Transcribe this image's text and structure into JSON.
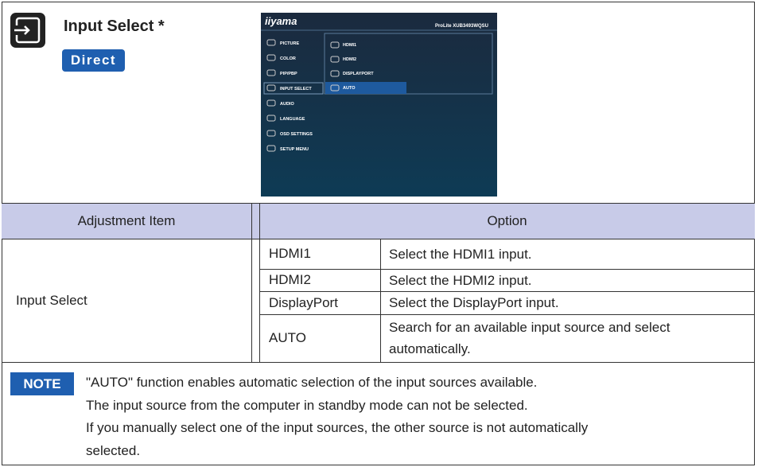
{
  "header": {
    "title": "Input Select *",
    "badge": "Direct"
  },
  "osd": {
    "brand": "iiyama",
    "model": "ProLite XUB3493WQSU",
    "menu": [
      "PICTURE",
      "COLOR",
      "PIP/PBP",
      "INPUT SELECT",
      "AUDIO",
      "LANGUAGE",
      "OSD SETTINGS",
      "SETUP MENU"
    ],
    "submenu": [
      "HDMI1",
      "HDMI2",
      "DISPLAYPORT",
      "AUTO"
    ]
  },
  "table": {
    "headers": [
      "Adjustment Item",
      "Option"
    ],
    "item": "Input Select",
    "rows": [
      [
        "HDMI1",
        "Select the HDMI1 input."
      ],
      [
        "HDMI2",
        "Select the HDMI2 input."
      ],
      [
        "DisplayPort",
        "Select the DisplayPort input."
      ],
      [
        "AUTO",
        "Search for an available input source and select automatically."
      ]
    ]
  },
  "note": {
    "label": "NOTE",
    "lines": [
      "\"AUTO\" function enables automatic selection of the input sources available.",
      "The input source from the computer in standby mode can not be selected.",
      "If you manually select one of the input sources, the other source is not automatically",
      "selected."
    ]
  }
}
